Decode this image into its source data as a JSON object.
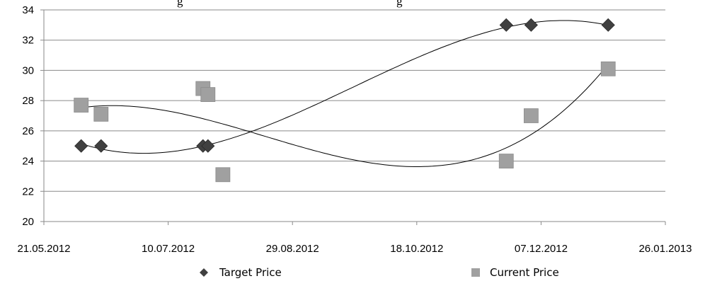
{
  "chart_data": {
    "type": "scatter",
    "title": "g",
    "title_right": "g",
    "xlabel": "",
    "ylabel": "",
    "x_axis_type": "date",
    "xlim": [
      "21.05.2012",
      "26.01.2013"
    ],
    "ylim": [
      20,
      34
    ],
    "x_ticks": [
      "21.05.2012",
      "10.07.2012",
      "29.08.2012",
      "18.10.2012",
      "07.12.2012",
      "26.01.2013"
    ],
    "y_ticks": [
      "20",
      "22",
      "24",
      "26",
      "28",
      "30",
      "32",
      "34"
    ],
    "grid": true,
    "legend_position": "bottom",
    "trendline": "polynomial",
    "series": [
      {
        "name": "Target Price",
        "marker": "diamond",
        "color": "#404040",
        "points": [
          {
            "x": "05.06.2012",
            "y": 25
          },
          {
            "x": "13.06.2012",
            "y": 25
          },
          {
            "x": "24.07.2012",
            "y": 25
          },
          {
            "x": "26.07.2012",
            "y": 25
          },
          {
            "x": "23.11.2012",
            "y": 33
          },
          {
            "x": "03.12.2012",
            "y": 33
          },
          {
            "x": "03.01.2013",
            "y": 33
          }
        ]
      },
      {
        "name": "Current Price",
        "marker": "square",
        "color": "#a0a0a0",
        "points": [
          {
            "x": "05.06.2012",
            "y": 27.7
          },
          {
            "x": "13.06.2012",
            "y": 27.1
          },
          {
            "x": "24.07.2012",
            "y": 28.8
          },
          {
            "x": "26.07.2012",
            "y": 28.4
          },
          {
            "x": "01.08.2012",
            "y": 23.1
          },
          {
            "x": "23.11.2012",
            "y": 24
          },
          {
            "x": "03.12.2012",
            "y": 27
          },
          {
            "x": "03.01.2013",
            "y": 30.1
          }
        ]
      }
    ]
  }
}
